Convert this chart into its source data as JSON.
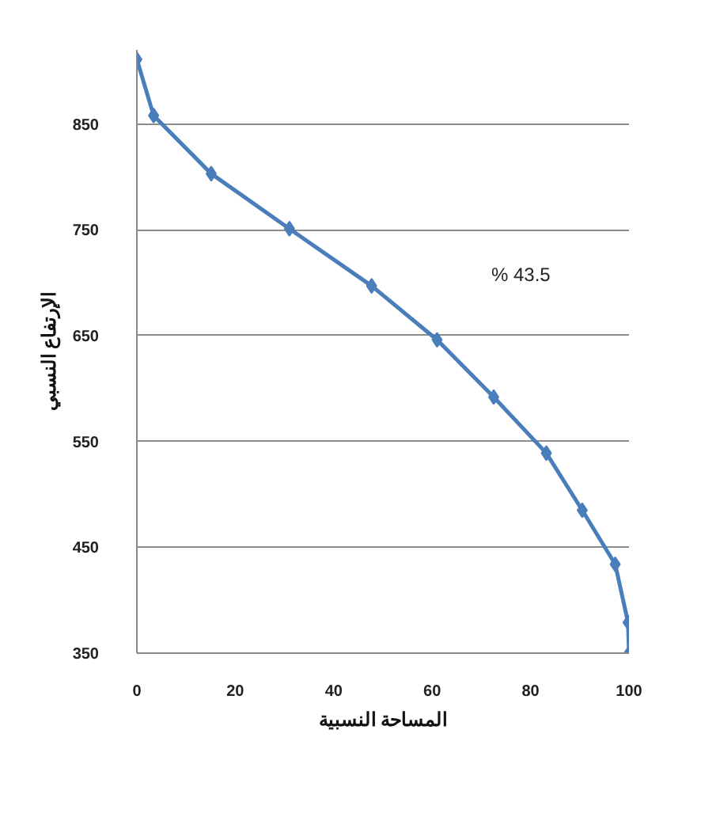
{
  "chart_data": {
    "type": "line",
    "xlabel": "المساحة النسبية",
    "ylabel": "الإرتفاع النسبي",
    "x": [
      0,
      3.4,
      15.1,
      31,
      47.7,
      61,
      72.5,
      83.2,
      90.5,
      97.2,
      99.8,
      100
    ],
    "series": [
      {
        "color": "#4a7ebb",
        "values": [
          911,
          858,
          803,
          751,
          697,
          646,
          592,
          539,
          485,
          434,
          379,
          350
        ]
      }
    ],
    "xlim": [
      0,
      100
    ],
    "xticks": [
      0,
      20,
      40,
      60,
      80,
      100
    ],
    "ylim": [
      350,
      920
    ],
    "yticks": [
      350,
      450,
      550,
      650,
      750,
      850
    ],
    "grid": "y",
    "marker": "diamond",
    "line_style": "solid",
    "annotations": [
      "% 43.5"
    ]
  }
}
